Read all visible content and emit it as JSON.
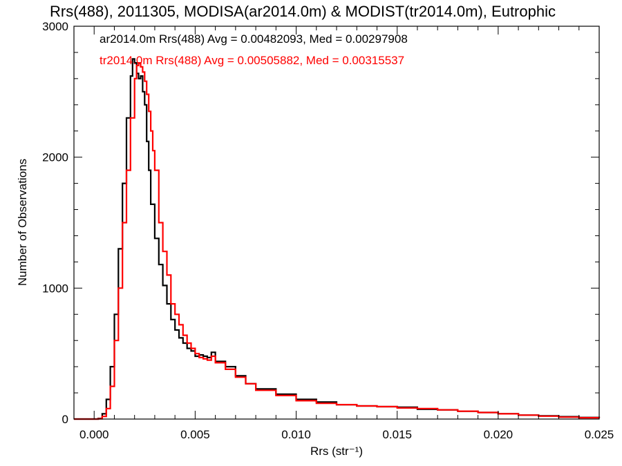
{
  "chart_data": {
    "type": "line",
    "title": "Rrs(488), 2011305, MODISA(ar2014.0m) & MODIST(tr2014.0m), Eutrophic",
    "xlabel": "Rrs (str⁻¹)",
    "ylabel": "Number of Observations",
    "xlim": [
      -0.001,
      0.025
    ],
    "ylim": [
      0,
      3000
    ],
    "xticks": [
      0.0,
      0.005,
      0.01,
      0.015,
      0.02,
      0.025
    ],
    "xtick_labels": [
      "0.000",
      "0.005",
      "0.010",
      "0.015",
      "0.020",
      "0.025"
    ],
    "yticks": [
      0,
      1000,
      2000,
      3000
    ],
    "ytick_labels": [
      "0",
      "1000",
      "2000",
      "3000"
    ],
    "grid": false,
    "legend_position": "top-left",
    "series": [
      {
        "name": "ar2014.0m Rrs(488) Avg = 0.00482093, Med = 0.00297908",
        "color": "#000000",
        "x": [
          -0.001,
          0.0002,
          0.0004,
          0.0006,
          0.0008,
          0.001,
          0.0012,
          0.0014,
          0.0016,
          0.0018,
          0.0019,
          0.002,
          0.0021,
          0.0022,
          0.0023,
          0.0024,
          0.0025,
          0.0026,
          0.0027,
          0.0028,
          0.003,
          0.0032,
          0.0034,
          0.0036,
          0.0038,
          0.004,
          0.0042,
          0.0044,
          0.0046,
          0.0048,
          0.005,
          0.0052,
          0.0054,
          0.0056,
          0.0058,
          0.006,
          0.0065,
          0.007,
          0.0075,
          0.008,
          0.009,
          0.01,
          0.011,
          0.012,
          0.013,
          0.014,
          0.015,
          0.016,
          0.017,
          0.018,
          0.019,
          0.02,
          0.021,
          0.022,
          0.023,
          0.024,
          0.025
        ],
        "values": [
          0,
          5,
          40,
          150,
          400,
          800,
          1300,
          1800,
          2300,
          2620,
          2750,
          2720,
          2640,
          2600,
          2620,
          2500,
          2400,
          2120,
          1900,
          1640,
          1380,
          1180,
          1020,
          880,
          760,
          680,
          620,
          580,
          540,
          520,
          480,
          490,
          480,
          470,
          510,
          440,
          400,
          330,
          270,
          230,
          190,
          150,
          130,
          110,
          100,
          95,
          90,
          75,
          70,
          60,
          50,
          40,
          30,
          25,
          18,
          12,
          10
        ]
      },
      {
        "name": "tr2014.0m Rrs(488) Avg = 0.00505882, Med = 0.00315537",
        "color": "#ff0000",
        "x": [
          -0.001,
          0.0002,
          0.0004,
          0.0006,
          0.0008,
          0.001,
          0.0012,
          0.0014,
          0.0016,
          0.0018,
          0.002,
          0.0021,
          0.0022,
          0.0023,
          0.0024,
          0.0025,
          0.0026,
          0.0027,
          0.0028,
          0.0029,
          0.003,
          0.0032,
          0.0034,
          0.0036,
          0.0038,
          0.004,
          0.0042,
          0.0044,
          0.0046,
          0.0048,
          0.005,
          0.0052,
          0.0054,
          0.0056,
          0.0058,
          0.006,
          0.0065,
          0.007,
          0.0075,
          0.008,
          0.009,
          0.01,
          0.011,
          0.012,
          0.013,
          0.014,
          0.015,
          0.016,
          0.017,
          0.018,
          0.019,
          0.02,
          0.021,
          0.022,
          0.023,
          0.024,
          0.025
        ],
        "values": [
          0,
          2,
          20,
          80,
          250,
          600,
          1000,
          1500,
          1900,
          2300,
          2600,
          2700,
          2720,
          2690,
          2650,
          2580,
          2480,
          2350,
          2200,
          2050,
          1900,
          1500,
          1280,
          1100,
          880,
          800,
          720,
          640,
          580,
          540,
          500,
          470,
          460,
          450,
          480,
          430,
          380,
          320,
          270,
          220,
          180,
          140,
          120,
          110,
          100,
          95,
          85,
          80,
          70,
          60,
          50,
          40,
          30,
          22,
          15,
          10,
          8
        ]
      }
    ]
  }
}
